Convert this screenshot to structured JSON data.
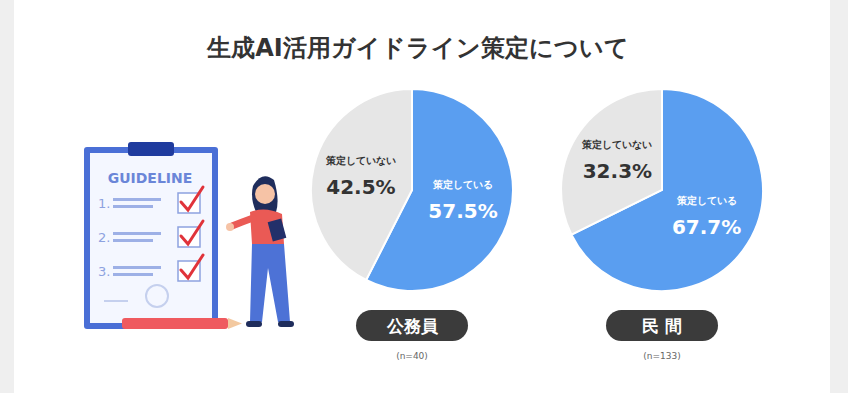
{
  "title": "生成AI活用ガイドライン策定について",
  "illustration": {
    "heading": "GUIDELINE",
    "items": [
      "1.",
      "2.",
      "3."
    ]
  },
  "chart_data": [
    {
      "type": "pie",
      "title": "公務員",
      "subtitle": "(n=40)",
      "categories": [
        "策定している",
        "策定していない"
      ],
      "values": [
        57.5,
        42.5
      ],
      "value_labels": [
        "57.5%",
        "42.5%"
      ],
      "colors": [
        "#5a9ef0",
        "#e6e6e6"
      ],
      "data_labels": true
    },
    {
      "type": "pie",
      "title": "民 間",
      "subtitle": "(n=133)",
      "categories": [
        "策定している",
        "策定していない"
      ],
      "values": [
        67.7,
        32.3
      ],
      "value_labels": [
        "67.7%",
        "32.3%"
      ],
      "colors": [
        "#5a9ef0",
        "#e6e6e6"
      ],
      "data_labels": true
    }
  ]
}
